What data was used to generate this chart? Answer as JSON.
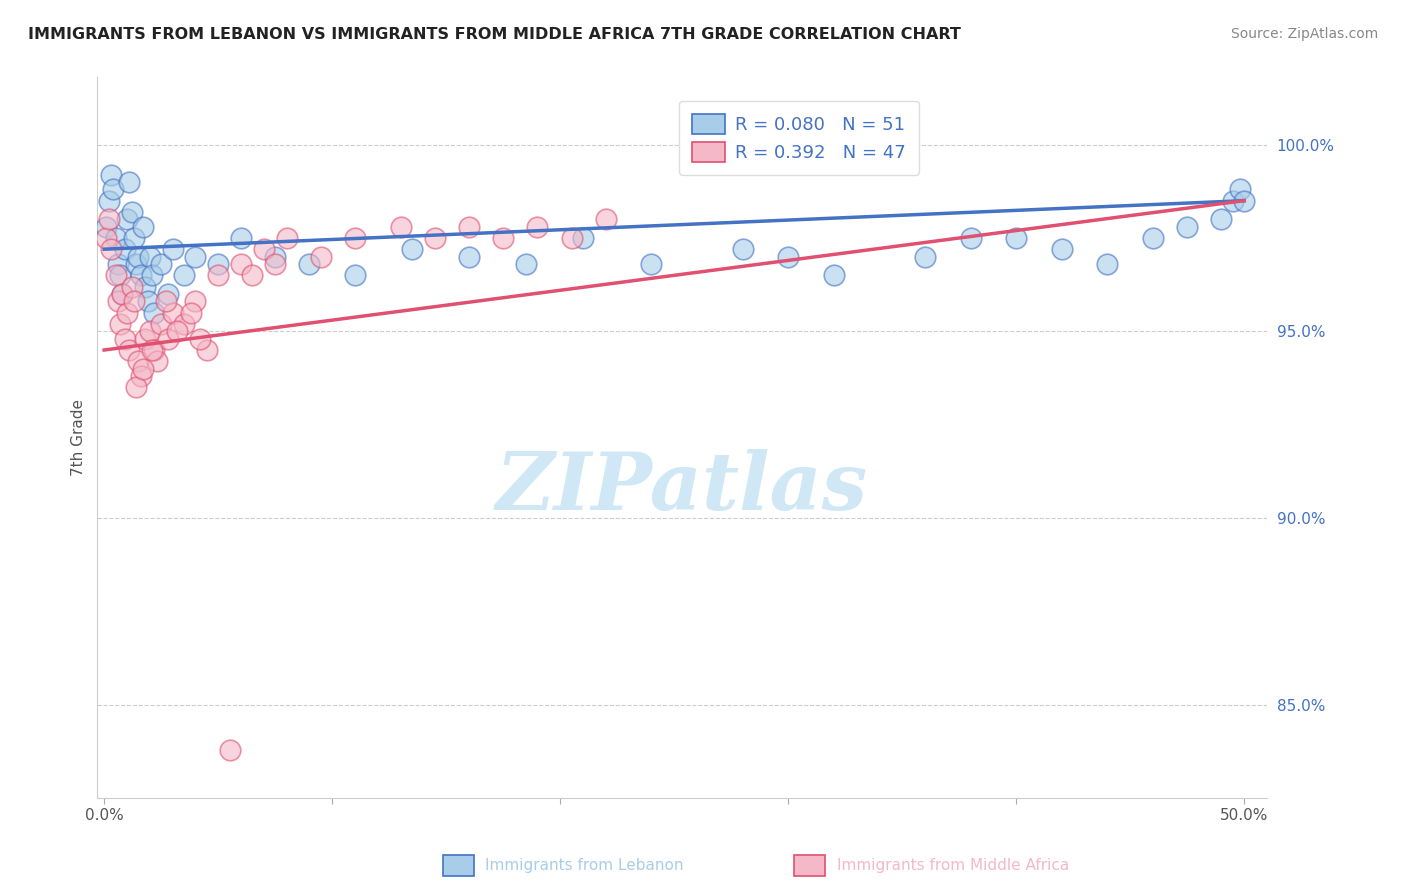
{
  "title": "IMMIGRANTS FROM LEBANON VS IMMIGRANTS FROM MIDDLE AFRICA 7TH GRADE CORRELATION CHART",
  "source": "Source: ZipAtlas.com",
  "xlabel_legend1": "Immigrants from Lebanon",
  "xlabel_legend2": "Immigrants from Middle Africa",
  "ylabel": "7th Grade",
  "xlim_min": -0.3,
  "xlim_max": 51.0,
  "ylim_min": 82.5,
  "ylim_max": 101.8,
  "y_ticks": [
    85.0,
    90.0,
    95.0,
    100.0
  ],
  "y_tick_labels": [
    "85.0%",
    "90.0%",
    "95.0%",
    "100.0%"
  ],
  "x_ticks": [
    0.0,
    10.0,
    20.0,
    30.0,
    40.0,
    50.0
  ],
  "x_tick_labels": [
    "0.0%",
    "",
    "",
    "",
    "",
    "50.0%"
  ],
  "R_blue": 0.08,
  "N_blue": 51,
  "R_pink": 0.392,
  "N_pink": 47,
  "blue_fill": "#a8cde8",
  "blue_edge": "#4472c4",
  "pink_fill": "#f4b8c8",
  "pink_edge": "#e05070",
  "blue_line": "#4472c4",
  "pink_line": "#e05070",
  "tick_color": "#4472c4",
  "watermark_color": "#c8e4f5",
  "blue_x": [
    0.1,
    0.2,
    0.3,
    0.4,
    0.5,
    0.6,
    0.7,
    0.8,
    0.9,
    1.0,
    1.1,
    1.2,
    1.3,
    1.4,
    1.5,
    1.6,
    1.7,
    1.8,
    1.9,
    2.0,
    2.1,
    2.2,
    2.5,
    2.8,
    3.0,
    3.5,
    4.0,
    5.0,
    6.0,
    7.5,
    9.0,
    11.0,
    13.5,
    16.0,
    18.5,
    21.0,
    24.0,
    28.0,
    32.0,
    36.0,
    40.0,
    42.0,
    44.0,
    46.0,
    47.5,
    49.0,
    49.5,
    49.8,
    50.0,
    30.0,
    38.0
  ],
  "blue_y": [
    97.8,
    98.5,
    99.2,
    98.8,
    97.5,
    96.8,
    96.5,
    96.0,
    97.2,
    98.0,
    99.0,
    98.2,
    97.5,
    96.8,
    97.0,
    96.5,
    97.8,
    96.2,
    95.8,
    97.0,
    96.5,
    95.5,
    96.8,
    96.0,
    97.2,
    96.5,
    97.0,
    96.8,
    97.5,
    97.0,
    96.8,
    96.5,
    97.2,
    97.0,
    96.8,
    97.5,
    96.8,
    97.2,
    96.5,
    97.0,
    97.5,
    97.2,
    96.8,
    97.5,
    97.8,
    98.0,
    98.5,
    98.8,
    98.5,
    97.0,
    97.5
  ],
  "pink_x": [
    0.1,
    0.2,
    0.3,
    0.5,
    0.6,
    0.7,
    0.8,
    0.9,
    1.0,
    1.1,
    1.2,
    1.3,
    1.5,
    1.6,
    1.8,
    2.0,
    2.2,
    2.5,
    2.8,
    3.0,
    3.5,
    4.0,
    5.0,
    6.0,
    7.0,
    8.0,
    9.5,
    11.0,
    13.0,
    14.5,
    16.0,
    17.5,
    19.0,
    20.5,
    22.0,
    4.5,
    3.2,
    2.3,
    1.4,
    2.7,
    3.8,
    1.7,
    5.5,
    4.2,
    6.5,
    2.1,
    7.5
  ],
  "pink_y": [
    97.5,
    98.0,
    97.2,
    96.5,
    95.8,
    95.2,
    96.0,
    94.8,
    95.5,
    94.5,
    96.2,
    95.8,
    94.2,
    93.8,
    94.8,
    95.0,
    94.5,
    95.2,
    94.8,
    95.5,
    95.2,
    95.8,
    96.5,
    96.8,
    97.2,
    97.5,
    97.0,
    97.5,
    97.8,
    97.5,
    97.8,
    97.5,
    97.8,
    97.5,
    98.0,
    94.5,
    95.0,
    94.2,
    93.5,
    95.8,
    95.5,
    94.0,
    83.8,
    94.8,
    96.5,
    94.5,
    96.8
  ]
}
